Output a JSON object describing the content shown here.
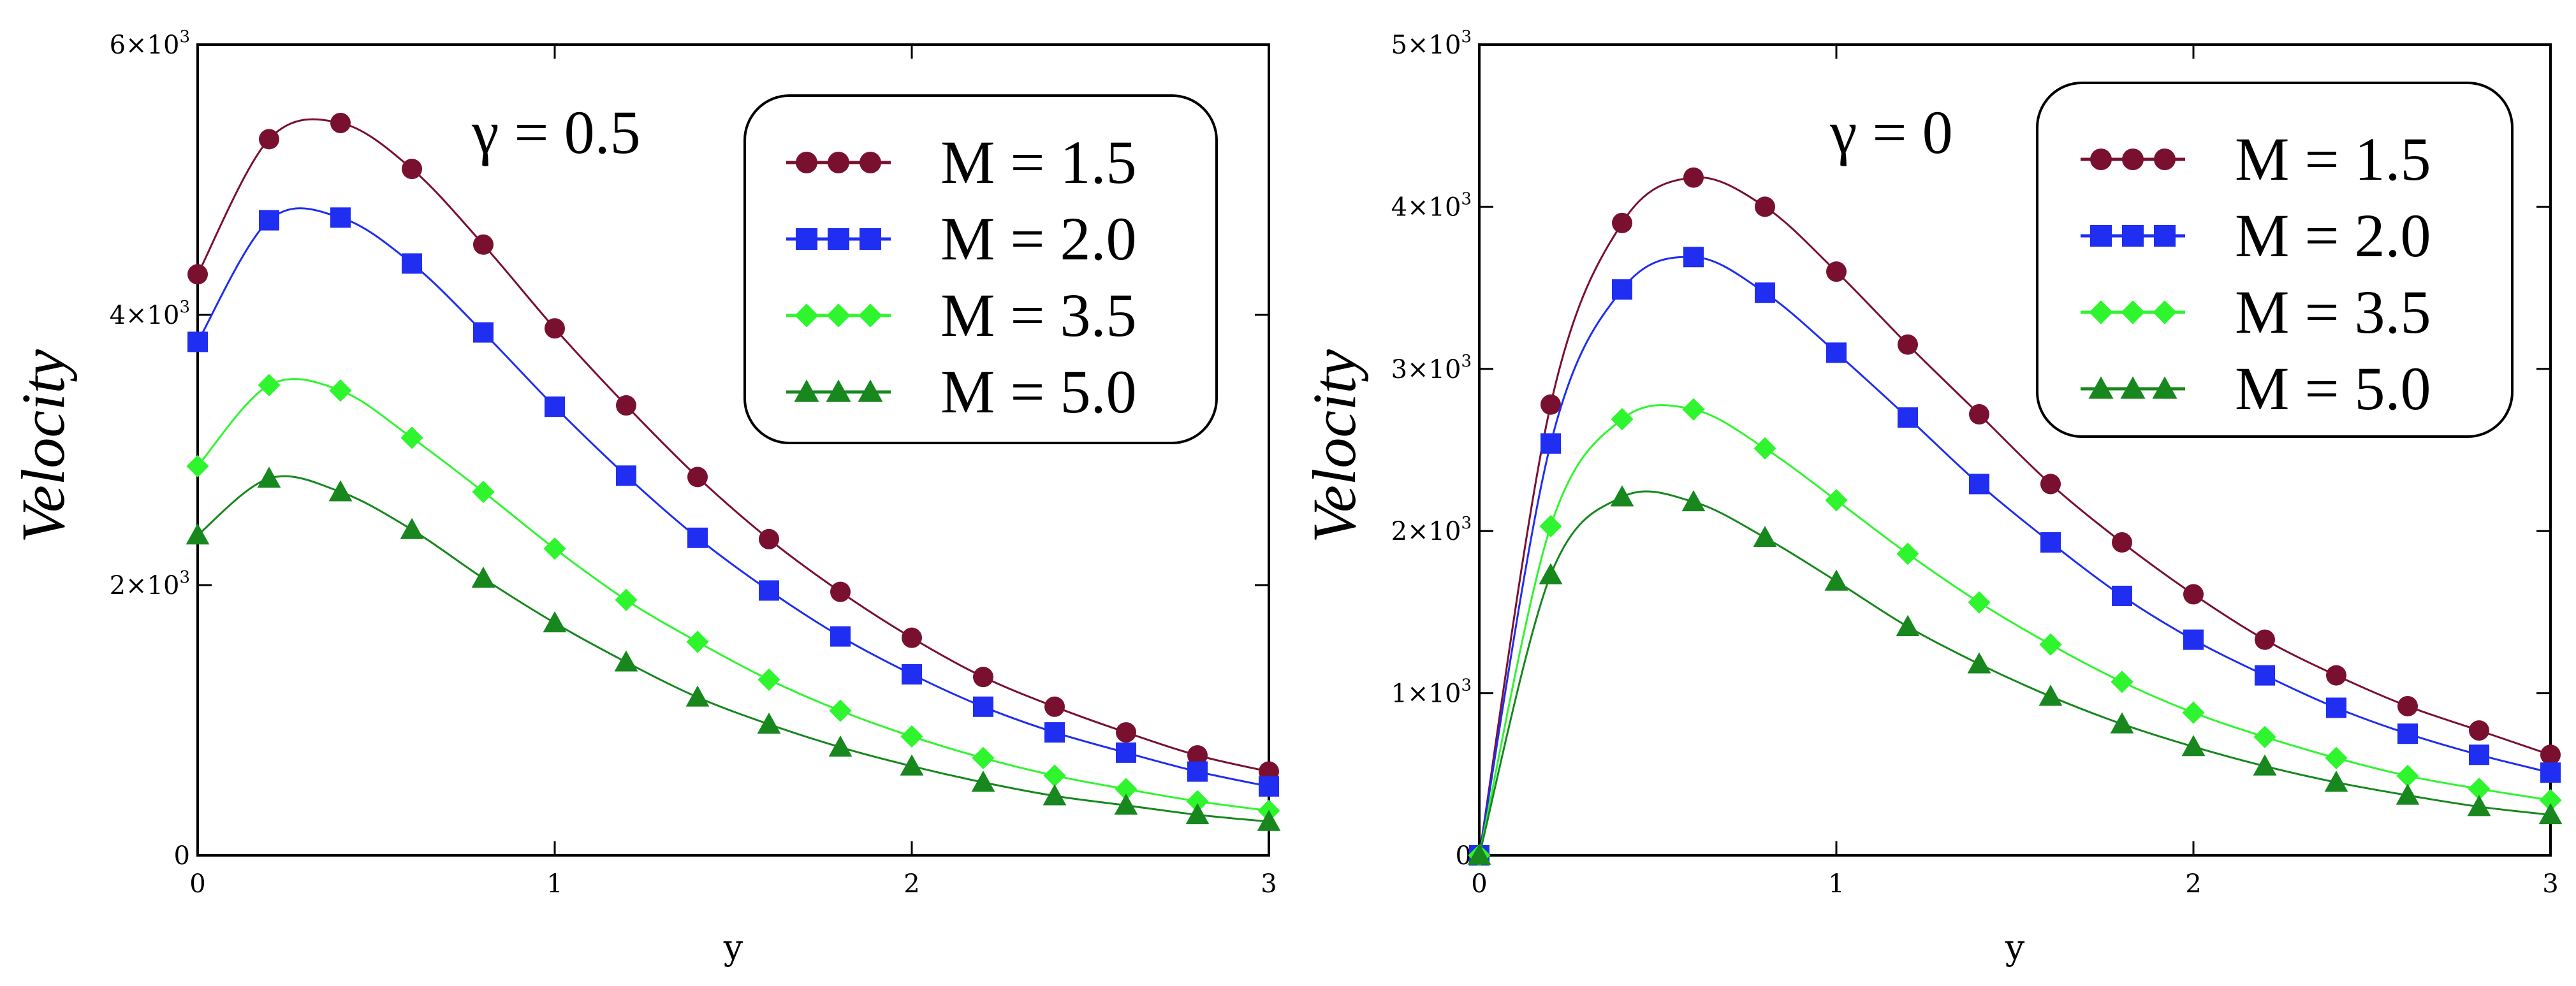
{
  "chart_data": [
    {
      "type": "line",
      "param_label": "γ = 0.5",
      "xlabel": "y",
      "ylabel": "Velocity",
      "xlim": [
        0,
        3
      ],
      "ylim": [
        0,
        6000
      ],
      "x_ticks": [
        0,
        1,
        2,
        3
      ],
      "x_tick_labels": [
        "0",
        "1",
        "2",
        "3"
      ],
      "y_ticks": [
        0,
        2000,
        4000,
        6000
      ],
      "y_tick_labels": [
        "0",
        "2×10",
        "4×10",
        "6×10"
      ],
      "y_tick_exponents": [
        "",
        "3",
        "3",
        "3"
      ],
      "x": [
        0,
        0.2,
        0.4,
        0.6,
        0.8,
        1.0,
        1.2,
        1.4,
        1.6,
        1.8,
        2.0,
        2.2,
        2.4,
        2.6,
        2.8,
        3.0
      ],
      "series": [
        {
          "name": "M = 1.5",
          "color": "#7a1030",
          "marker": "circle",
          "values": [
            4300,
            5300,
            5420,
            5080,
            4520,
            3900,
            3330,
            2800,
            2340,
            1950,
            1610,
            1320,
            1100,
            910,
            740,
            620
          ]
        },
        {
          "name": "M = 2.0",
          "color": "#1f2ef0",
          "marker": "square",
          "values": [
            3800,
            4700,
            4720,
            4380,
            3870,
            3320,
            2810,
            2350,
            1960,
            1620,
            1340,
            1100,
            910,
            760,
            620,
            510
          ]
        },
        {
          "name": "M = 3.5",
          "color": "#2ff52f",
          "marker": "diamond",
          "values": [
            2880,
            3480,
            3440,
            3090,
            2690,
            2270,
            1890,
            1580,
            1300,
            1070,
            880,
            720,
            590,
            490,
            400,
            330
          ]
        },
        {
          "name": "M = 5.0",
          "color": "#17871e",
          "marker": "triangle",
          "values": [
            2370,
            2790,
            2690,
            2410,
            2050,
            1720,
            1430,
            1170,
            970,
            800,
            660,
            540,
            440,
            370,
            300,
            250
          ]
        }
      ]
    },
    {
      "type": "line",
      "param_label": "γ = 0",
      "xlabel": "y",
      "ylabel": "Velocity",
      "xlim": [
        0,
        3
      ],
      "ylim": [
        0,
        5000
      ],
      "x_ticks": [
        0,
        1,
        2,
        3
      ],
      "x_tick_labels": [
        "0",
        "1",
        "2",
        "3"
      ],
      "y_ticks": [
        0,
        1000,
        2000,
        3000,
        4000,
        5000
      ],
      "y_tick_labels": [
        "0",
        "1×10",
        "2×10",
        "3×10",
        "4×10",
        "5×10"
      ],
      "y_tick_exponents": [
        "",
        "3",
        "3",
        "3",
        "3",
        "3"
      ],
      "x": [
        0,
        0.2,
        0.4,
        0.6,
        0.8,
        1.0,
        1.2,
        1.4,
        1.6,
        1.8,
        2.0,
        2.2,
        2.4,
        2.6,
        2.8,
        3.0
      ],
      "series": [
        {
          "name": "M = 1.5",
          "color": "#7a1030",
          "marker": "circle",
          "values": [
            0,
            2780,
            3900,
            4180,
            4000,
            3600,
            3150,
            2720,
            2290,
            1930,
            1610,
            1330,
            1110,
            920,
            770,
            620
          ]
        },
        {
          "name": "M = 2.0",
          "color": "#1f2ef0",
          "marker": "square",
          "values": [
            0,
            2540,
            3490,
            3690,
            3470,
            3100,
            2700,
            2290,
            1930,
            1600,
            1330,
            1110,
            910,
            750,
            620,
            510
          ]
        },
        {
          "name": "M = 3.5",
          "color": "#2ff52f",
          "marker": "diamond",
          "values": [
            0,
            2030,
            2690,
            2750,
            2510,
            2190,
            1860,
            1560,
            1300,
            1070,
            880,
            730,
            600,
            490,
            410,
            340
          ]
        },
        {
          "name": "M = 5.0",
          "color": "#17871e",
          "marker": "triangle",
          "values": [
            0,
            1730,
            2210,
            2180,
            1960,
            1690,
            1410,
            1180,
            980,
            810,
            670,
            550,
            450,
            370,
            300,
            250
          ]
        }
      ]
    }
  ]
}
